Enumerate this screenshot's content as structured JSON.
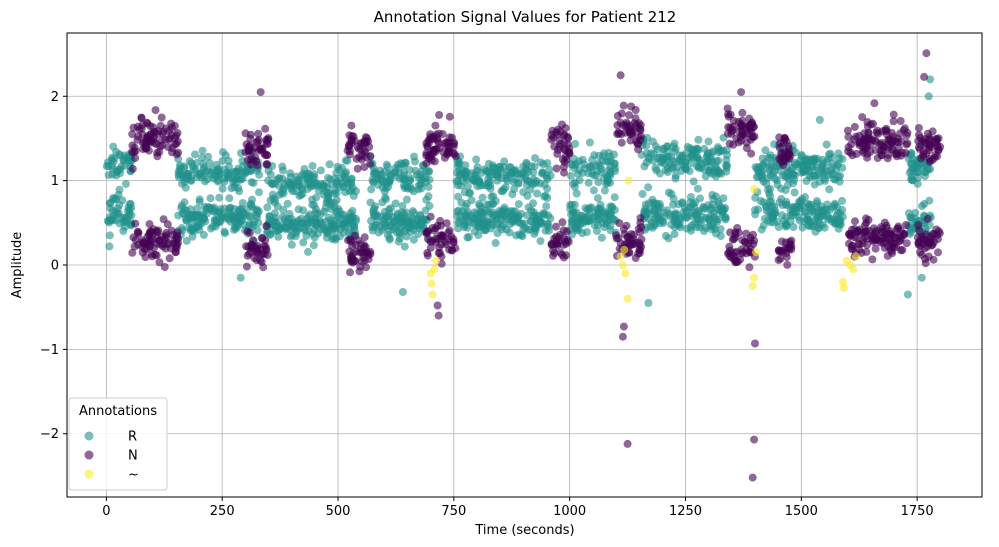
{
  "chart_data": {
    "type": "scatter",
    "title": "Annotation Signal Values for Patient 212",
    "xlabel": "Time (seconds)",
    "ylabel": "Amplitude",
    "xlim": [
      -85,
      1890
    ],
    "ylim": [
      -2.75,
      2.75
    ],
    "xticks": [
      0,
      250,
      500,
      750,
      1000,
      1250,
      1500,
      1750
    ],
    "yticks": [
      -2,
      -1,
      0,
      1,
      2
    ],
    "grid": true,
    "legend": {
      "title": "Annotations",
      "placement": "lower-left"
    },
    "series": [
      {
        "name": "R",
        "color": "#21918c",
        "segments": [
          [
            0,
            55,
            1.2,
            0.6
          ],
          [
            155,
            330,
            1.1,
            0.55
          ],
          [
            345,
            540,
            0.95,
            0.5
          ],
          [
            570,
            700,
            1.05,
            0.5
          ],
          [
            755,
            960,
            1.05,
            0.55
          ],
          [
            1000,
            1100,
            1.15,
            0.55
          ],
          [
            1155,
            1340,
            1.25,
            0.6
          ],
          [
            1400,
            1590,
            1.15,
            0.6
          ],
          [
            1730,
            1780,
            1.15,
            0.5
          ]
        ],
        "outliers": [
          [
            290,
            -0.15
          ],
          [
            640,
            -0.32
          ],
          [
            1170,
            -0.45
          ],
          [
            1730,
            -0.35
          ],
          [
            1775,
            2.0
          ],
          [
            1778,
            2.2
          ],
          [
            1540,
            1.72
          ],
          [
            1760,
            -0.15
          ]
        ]
      },
      {
        "name": "N",
        "color": "#440154",
        "segments": [
          [
            55,
            155,
            1.5,
            0.3
          ],
          [
            300,
            350,
            1.4,
            0.2
          ],
          [
            520,
            570,
            1.35,
            0.1
          ],
          [
            690,
            755,
            1.4,
            0.3
          ],
          [
            960,
            1000,
            1.4,
            0.25
          ],
          [
            1100,
            1155,
            1.65,
            0.3
          ],
          [
            1340,
            1400,
            1.6,
            0.2
          ],
          [
            1450,
            1480,
            1.35,
            0.2
          ],
          [
            1600,
            1730,
            1.45,
            0.3
          ],
          [
            1750,
            1800,
            1.4,
            0.3
          ]
        ],
        "outliers": [
          [
            717,
            -0.6
          ],
          [
            715,
            -0.48
          ],
          [
            1115,
            -0.85
          ],
          [
            1117,
            -0.73
          ],
          [
            1125,
            -2.12
          ],
          [
            1395,
            -2.52
          ],
          [
            1398,
            -2.07
          ],
          [
            1400,
            -0.93
          ],
          [
            1765,
            2.23
          ],
          [
            1770,
            2.51
          ],
          [
            1110,
            2.25
          ],
          [
            1370,
            2.05
          ],
          [
            333,
            2.05
          ]
        ]
      },
      {
        "name": "~",
        "color": "#fde725",
        "segments": [],
        "outliers": [
          [
            700,
            -0.1
          ],
          [
            702,
            -0.22
          ],
          [
            704,
            -0.35
          ],
          [
            708,
            -0.05
          ],
          [
            712,
            0.05
          ],
          [
            1110,
            0.1
          ],
          [
            1115,
            0.0
          ],
          [
            1120,
            -0.1
          ],
          [
            1125,
            -0.4
          ],
          [
            1118,
            0.18
          ],
          [
            1127,
            1.0
          ],
          [
            1395,
            -0.25
          ],
          [
            1398,
            -0.15
          ],
          [
            1402,
            0.15
          ],
          [
            1398,
            0.9
          ],
          [
            1590,
            -0.2
          ],
          [
            1592,
            -0.27
          ],
          [
            1598,
            0.05
          ],
          [
            1605,
            0.0
          ],
          [
            1612,
            -0.05
          ],
          [
            1618,
            0.1
          ]
        ]
      }
    ]
  }
}
